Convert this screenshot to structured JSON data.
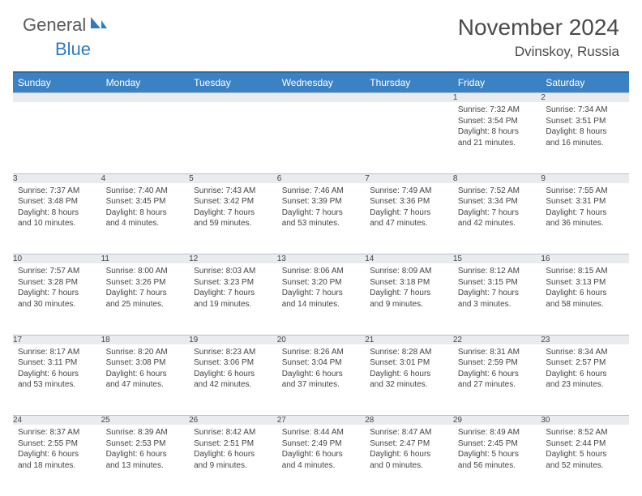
{
  "brand": {
    "text1": "General",
    "text2": "Blue"
  },
  "title": "November 2024",
  "location": "Dvinskoy, Russia",
  "colors": {
    "header_bg": "#3b82c4",
    "header_border": "#2b6aa3",
    "daynum_bg": "#e9ecef",
    "text": "#444444"
  },
  "weekdays": [
    "Sunday",
    "Monday",
    "Tuesday",
    "Wednesday",
    "Thursday",
    "Friday",
    "Saturday"
  ],
  "weeks": [
    [
      null,
      null,
      null,
      null,
      null,
      {
        "n": "1",
        "sr": "Sunrise: 7:32 AM",
        "ss": "Sunset: 3:54 PM",
        "d1": "Daylight: 8 hours",
        "d2": "and 21 minutes."
      },
      {
        "n": "2",
        "sr": "Sunrise: 7:34 AM",
        "ss": "Sunset: 3:51 PM",
        "d1": "Daylight: 8 hours",
        "d2": "and 16 minutes."
      }
    ],
    [
      {
        "n": "3",
        "sr": "Sunrise: 7:37 AM",
        "ss": "Sunset: 3:48 PM",
        "d1": "Daylight: 8 hours",
        "d2": "and 10 minutes."
      },
      {
        "n": "4",
        "sr": "Sunrise: 7:40 AM",
        "ss": "Sunset: 3:45 PM",
        "d1": "Daylight: 8 hours",
        "d2": "and 4 minutes."
      },
      {
        "n": "5",
        "sr": "Sunrise: 7:43 AM",
        "ss": "Sunset: 3:42 PM",
        "d1": "Daylight: 7 hours",
        "d2": "and 59 minutes."
      },
      {
        "n": "6",
        "sr": "Sunrise: 7:46 AM",
        "ss": "Sunset: 3:39 PM",
        "d1": "Daylight: 7 hours",
        "d2": "and 53 minutes."
      },
      {
        "n": "7",
        "sr": "Sunrise: 7:49 AM",
        "ss": "Sunset: 3:36 PM",
        "d1": "Daylight: 7 hours",
        "d2": "and 47 minutes."
      },
      {
        "n": "8",
        "sr": "Sunrise: 7:52 AM",
        "ss": "Sunset: 3:34 PM",
        "d1": "Daylight: 7 hours",
        "d2": "and 42 minutes."
      },
      {
        "n": "9",
        "sr": "Sunrise: 7:55 AM",
        "ss": "Sunset: 3:31 PM",
        "d1": "Daylight: 7 hours",
        "d2": "and 36 minutes."
      }
    ],
    [
      {
        "n": "10",
        "sr": "Sunrise: 7:57 AM",
        "ss": "Sunset: 3:28 PM",
        "d1": "Daylight: 7 hours",
        "d2": "and 30 minutes."
      },
      {
        "n": "11",
        "sr": "Sunrise: 8:00 AM",
        "ss": "Sunset: 3:26 PM",
        "d1": "Daylight: 7 hours",
        "d2": "and 25 minutes."
      },
      {
        "n": "12",
        "sr": "Sunrise: 8:03 AM",
        "ss": "Sunset: 3:23 PM",
        "d1": "Daylight: 7 hours",
        "d2": "and 19 minutes."
      },
      {
        "n": "13",
        "sr": "Sunrise: 8:06 AM",
        "ss": "Sunset: 3:20 PM",
        "d1": "Daylight: 7 hours",
        "d2": "and 14 minutes."
      },
      {
        "n": "14",
        "sr": "Sunrise: 8:09 AM",
        "ss": "Sunset: 3:18 PM",
        "d1": "Daylight: 7 hours",
        "d2": "and 9 minutes."
      },
      {
        "n": "15",
        "sr": "Sunrise: 8:12 AM",
        "ss": "Sunset: 3:15 PM",
        "d1": "Daylight: 7 hours",
        "d2": "and 3 minutes."
      },
      {
        "n": "16",
        "sr": "Sunrise: 8:15 AM",
        "ss": "Sunset: 3:13 PM",
        "d1": "Daylight: 6 hours",
        "d2": "and 58 minutes."
      }
    ],
    [
      {
        "n": "17",
        "sr": "Sunrise: 8:17 AM",
        "ss": "Sunset: 3:11 PM",
        "d1": "Daylight: 6 hours",
        "d2": "and 53 minutes."
      },
      {
        "n": "18",
        "sr": "Sunrise: 8:20 AM",
        "ss": "Sunset: 3:08 PM",
        "d1": "Daylight: 6 hours",
        "d2": "and 47 minutes."
      },
      {
        "n": "19",
        "sr": "Sunrise: 8:23 AM",
        "ss": "Sunset: 3:06 PM",
        "d1": "Daylight: 6 hours",
        "d2": "and 42 minutes."
      },
      {
        "n": "20",
        "sr": "Sunrise: 8:26 AM",
        "ss": "Sunset: 3:04 PM",
        "d1": "Daylight: 6 hours",
        "d2": "and 37 minutes."
      },
      {
        "n": "21",
        "sr": "Sunrise: 8:28 AM",
        "ss": "Sunset: 3:01 PM",
        "d1": "Daylight: 6 hours",
        "d2": "and 32 minutes."
      },
      {
        "n": "22",
        "sr": "Sunrise: 8:31 AM",
        "ss": "Sunset: 2:59 PM",
        "d1": "Daylight: 6 hours",
        "d2": "and 27 minutes."
      },
      {
        "n": "23",
        "sr": "Sunrise: 8:34 AM",
        "ss": "Sunset: 2:57 PM",
        "d1": "Daylight: 6 hours",
        "d2": "and 23 minutes."
      }
    ],
    [
      {
        "n": "24",
        "sr": "Sunrise: 8:37 AM",
        "ss": "Sunset: 2:55 PM",
        "d1": "Daylight: 6 hours",
        "d2": "and 18 minutes."
      },
      {
        "n": "25",
        "sr": "Sunrise: 8:39 AM",
        "ss": "Sunset: 2:53 PM",
        "d1": "Daylight: 6 hours",
        "d2": "and 13 minutes."
      },
      {
        "n": "26",
        "sr": "Sunrise: 8:42 AM",
        "ss": "Sunset: 2:51 PM",
        "d1": "Daylight: 6 hours",
        "d2": "and 9 minutes."
      },
      {
        "n": "27",
        "sr": "Sunrise: 8:44 AM",
        "ss": "Sunset: 2:49 PM",
        "d1": "Daylight: 6 hours",
        "d2": "and 4 minutes."
      },
      {
        "n": "28",
        "sr": "Sunrise: 8:47 AM",
        "ss": "Sunset: 2:47 PM",
        "d1": "Daylight: 6 hours",
        "d2": "and 0 minutes."
      },
      {
        "n": "29",
        "sr": "Sunrise: 8:49 AM",
        "ss": "Sunset: 2:45 PM",
        "d1": "Daylight: 5 hours",
        "d2": "and 56 minutes."
      },
      {
        "n": "30",
        "sr": "Sunrise: 8:52 AM",
        "ss": "Sunset: 2:44 PM",
        "d1": "Daylight: 5 hours",
        "d2": "and 52 minutes."
      }
    ]
  ]
}
